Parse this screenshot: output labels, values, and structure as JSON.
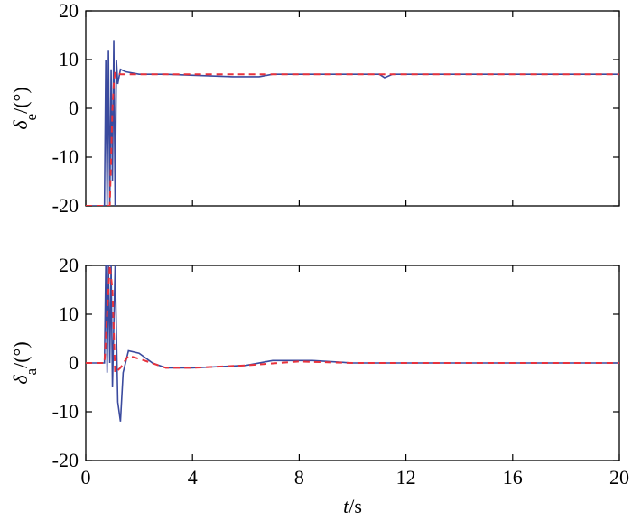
{
  "chart_data": [
    {
      "type": "line",
      "y_label": {
        "symbol": "δ",
        "subscript": "e",
        "unit": "/(°)"
      },
      "xlim": [
        0,
        20
      ],
      "xticks": [
        0,
        4,
        8,
        12,
        16,
        20
      ],
      "show_xtick_labels": false,
      "ylim": [
        -20,
        20
      ],
      "yticks": [
        -20,
        -10,
        0,
        10,
        20
      ],
      "series": [
        {
          "color": "#3a4a9e",
          "dash": false,
          "x": [
            0,
            0.7,
            0.75,
            0.8,
            0.85,
            0.9,
            0.95,
            1.0,
            1.05,
            1.1,
            1.15,
            1.2,
            1.3,
            1.5,
            2,
            3,
            5.5,
            6.5,
            7,
            10,
            11,
            11.2,
            11.5,
            12,
            16,
            20
          ],
          "values": [
            -20,
            -20,
            10,
            -20,
            12,
            -20,
            8,
            -15,
            14,
            -20,
            10,
            5,
            8,
            7.5,
            7,
            7,
            6.5,
            6.5,
            7,
            7,
            7,
            6.3,
            7,
            7,
            7,
            7
          ]
        },
        {
          "color": "#e8323c",
          "dash": true,
          "x": [
            0,
            0.9,
            1.0,
            1.05,
            1.1,
            1.3,
            20
          ],
          "values": [
            -20,
            -20,
            0,
            5,
            7.5,
            7,
            7
          ]
        }
      ]
    },
    {
      "type": "line",
      "y_label": {
        "symbol": "δ",
        "subscript": "a",
        "unit": "/(°)"
      },
      "x_label": {
        "symbol": "t",
        "unit": "/s"
      },
      "xlim": [
        0,
        20
      ],
      "xticks": [
        0,
        4,
        8,
        12,
        16,
        20
      ],
      "show_xtick_labels": true,
      "ylim": [
        -20,
        20
      ],
      "yticks": [
        -20,
        -10,
        0,
        10,
        20
      ],
      "series": [
        {
          "color": "#3a4a9e",
          "dash": false,
          "x": [
            0,
            0.7,
            0.75,
            0.8,
            0.85,
            0.9,
            0.95,
            1.0,
            1.1,
            1.2,
            1.3,
            1.4,
            1.6,
            2,
            2.5,
            3,
            4,
            6,
            7,
            8.5,
            10,
            12,
            20
          ],
          "values": [
            0,
            0,
            20,
            -2,
            20,
            0,
            20,
            -5,
            20,
            -8,
            -12,
            -2,
            2.5,
            2,
            0,
            -1,
            -1,
            -0.5,
            0.5,
            0.5,
            0,
            0,
            0
          ]
        },
        {
          "color": "#e8323c",
          "dash": true,
          "x": [
            0,
            0.7,
            0.9,
            1.0,
            1.1,
            1.3,
            1.6,
            2.2,
            3,
            4,
            6,
            8,
            10,
            20
          ],
          "values": [
            0,
            0,
            20,
            15,
            -2,
            -1,
            1.5,
            0.5,
            -1,
            -1,
            -0.5,
            0.3,
            0,
            0
          ]
        }
      ]
    }
  ]
}
